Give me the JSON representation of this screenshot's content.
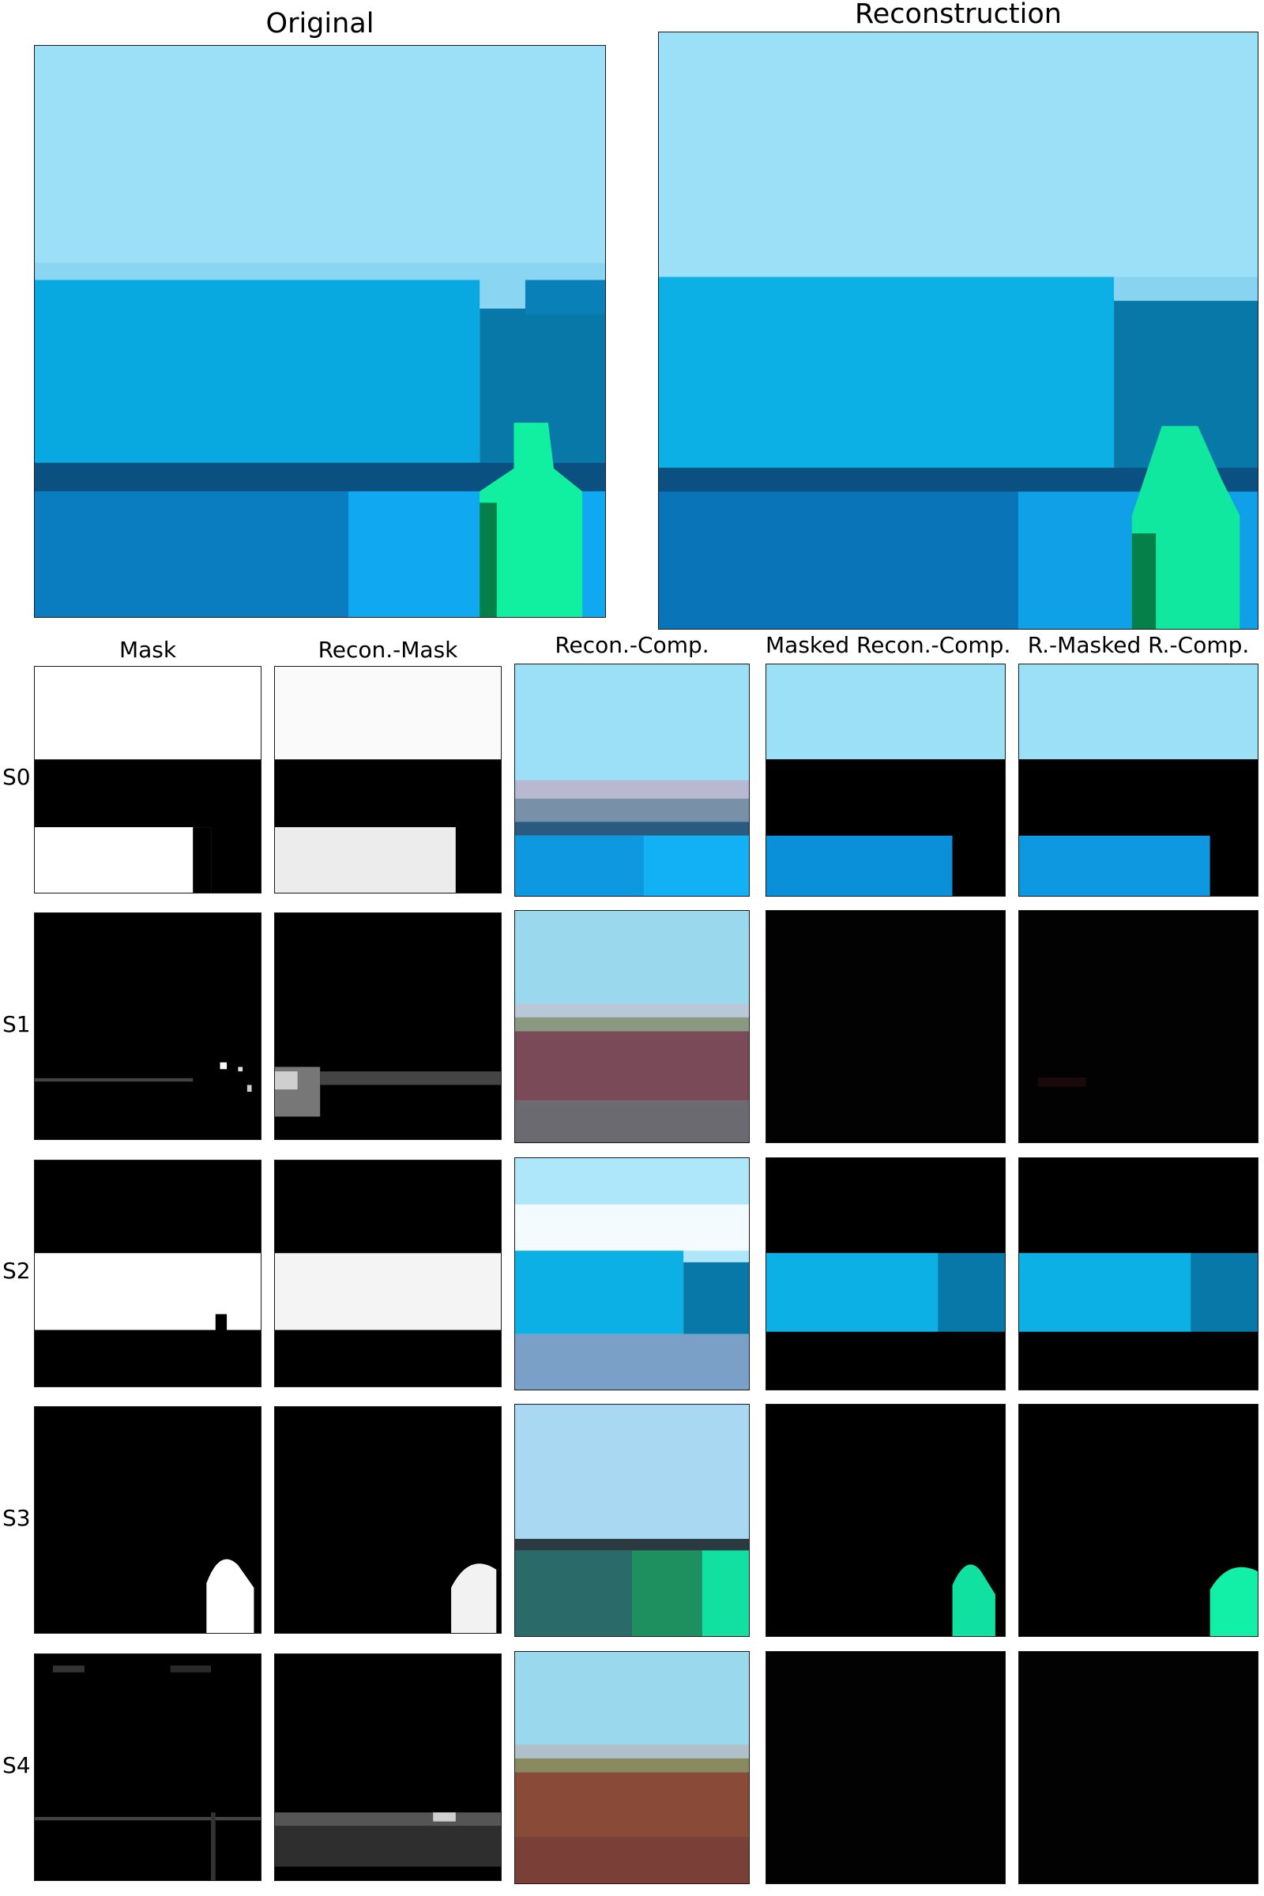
{
  "titles": {
    "original": "Original",
    "reconstruction": "Reconstruction"
  },
  "columns": [
    "Mask",
    "Recon.-Mask",
    "Recon.-Comp.",
    "Masked Recon.-Comp.",
    "R.-Masked R.-Comp."
  ],
  "rows": [
    "S0",
    "S1",
    "S2",
    "S3",
    "S4"
  ],
  "colors": {
    "sky": "#9CE0F7",
    "wall": "#08A8E0",
    "wall_dark": "#0878A8",
    "floor": "#0A90D8",
    "floor_dark": "#0A5080",
    "object": "#10F0A0",
    "object_dark": "#058048",
    "mask_on": "#FFFFFF",
    "mask_off": "#000000",
    "floor_red": "#8A3A30",
    "floor_teal": "#2A6A68"
  }
}
